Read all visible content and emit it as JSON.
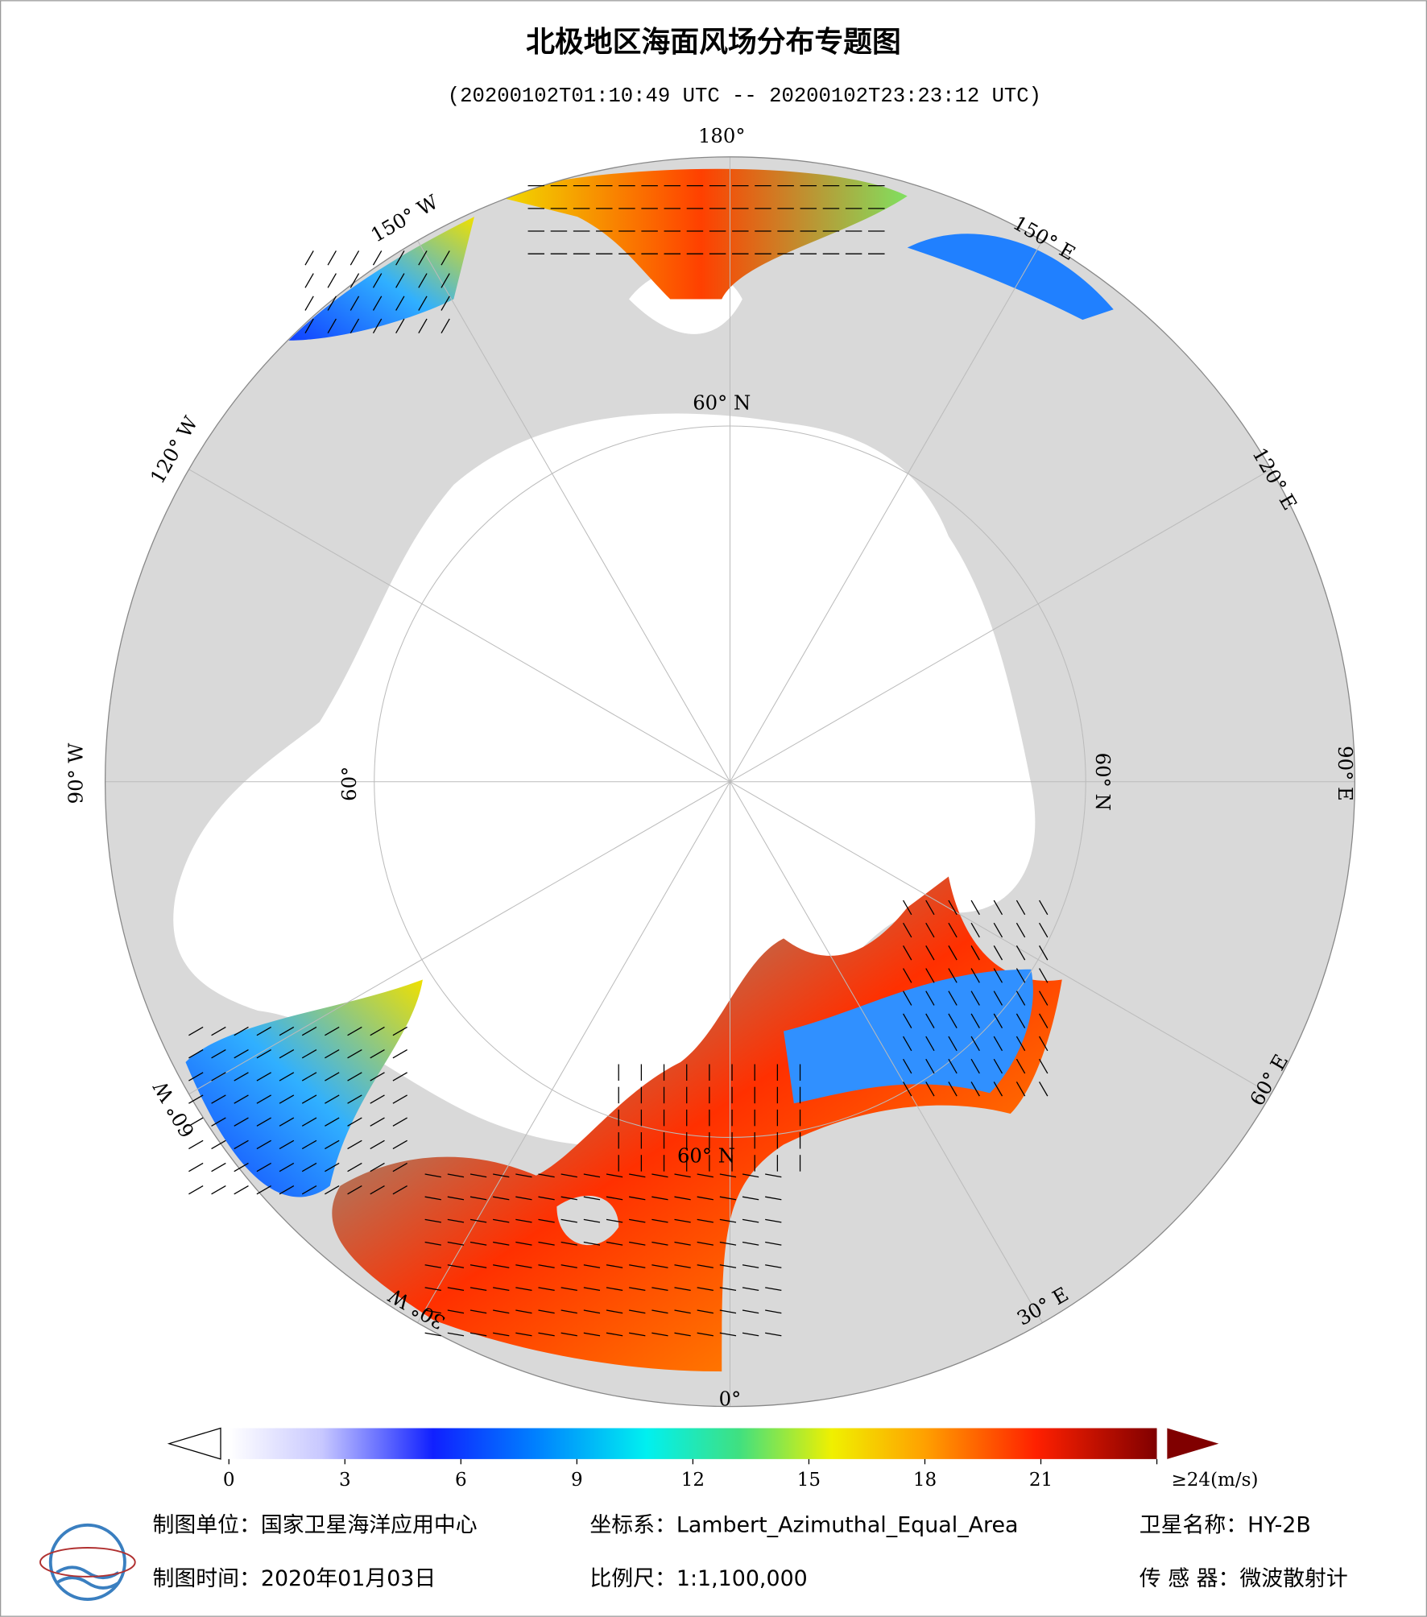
{
  "header": {
    "title": "北极地区海面风场分布专题图",
    "subtitle": "(20200102T01:10:49 UTC -- 20200102T23:23:12 UTC)"
  },
  "map": {
    "longitude_labels": [
      "180°",
      "150° E",
      "120° E",
      "90° E",
      "60° E",
      "30° E",
      "0°",
      "30° W",
      "60° W",
      "90° W",
      "120° W",
      "150° W"
    ],
    "latitude_labels": [
      "60° N",
      "60° N",
      "60° N",
      "60°"
    ]
  },
  "colorbar": {
    "range": [
      0,
      24
    ],
    "ticks": [
      0,
      3,
      6,
      9,
      12,
      15,
      18,
      21,
      {
        "value": 24,
        "label": "≥24(m/s)"
      }
    ]
  },
  "footer": {
    "items": [
      "制图单位：国家卫星海洋应用中心",
      "坐标系：Lambert_Azimuthal_Equal_Area",
      "卫星名称：HY-2B",
      "制图时间：2020年01月03日",
      "比例尺：1:1,100,000",
      "传 感 器：微波散射计"
    ]
  }
}
